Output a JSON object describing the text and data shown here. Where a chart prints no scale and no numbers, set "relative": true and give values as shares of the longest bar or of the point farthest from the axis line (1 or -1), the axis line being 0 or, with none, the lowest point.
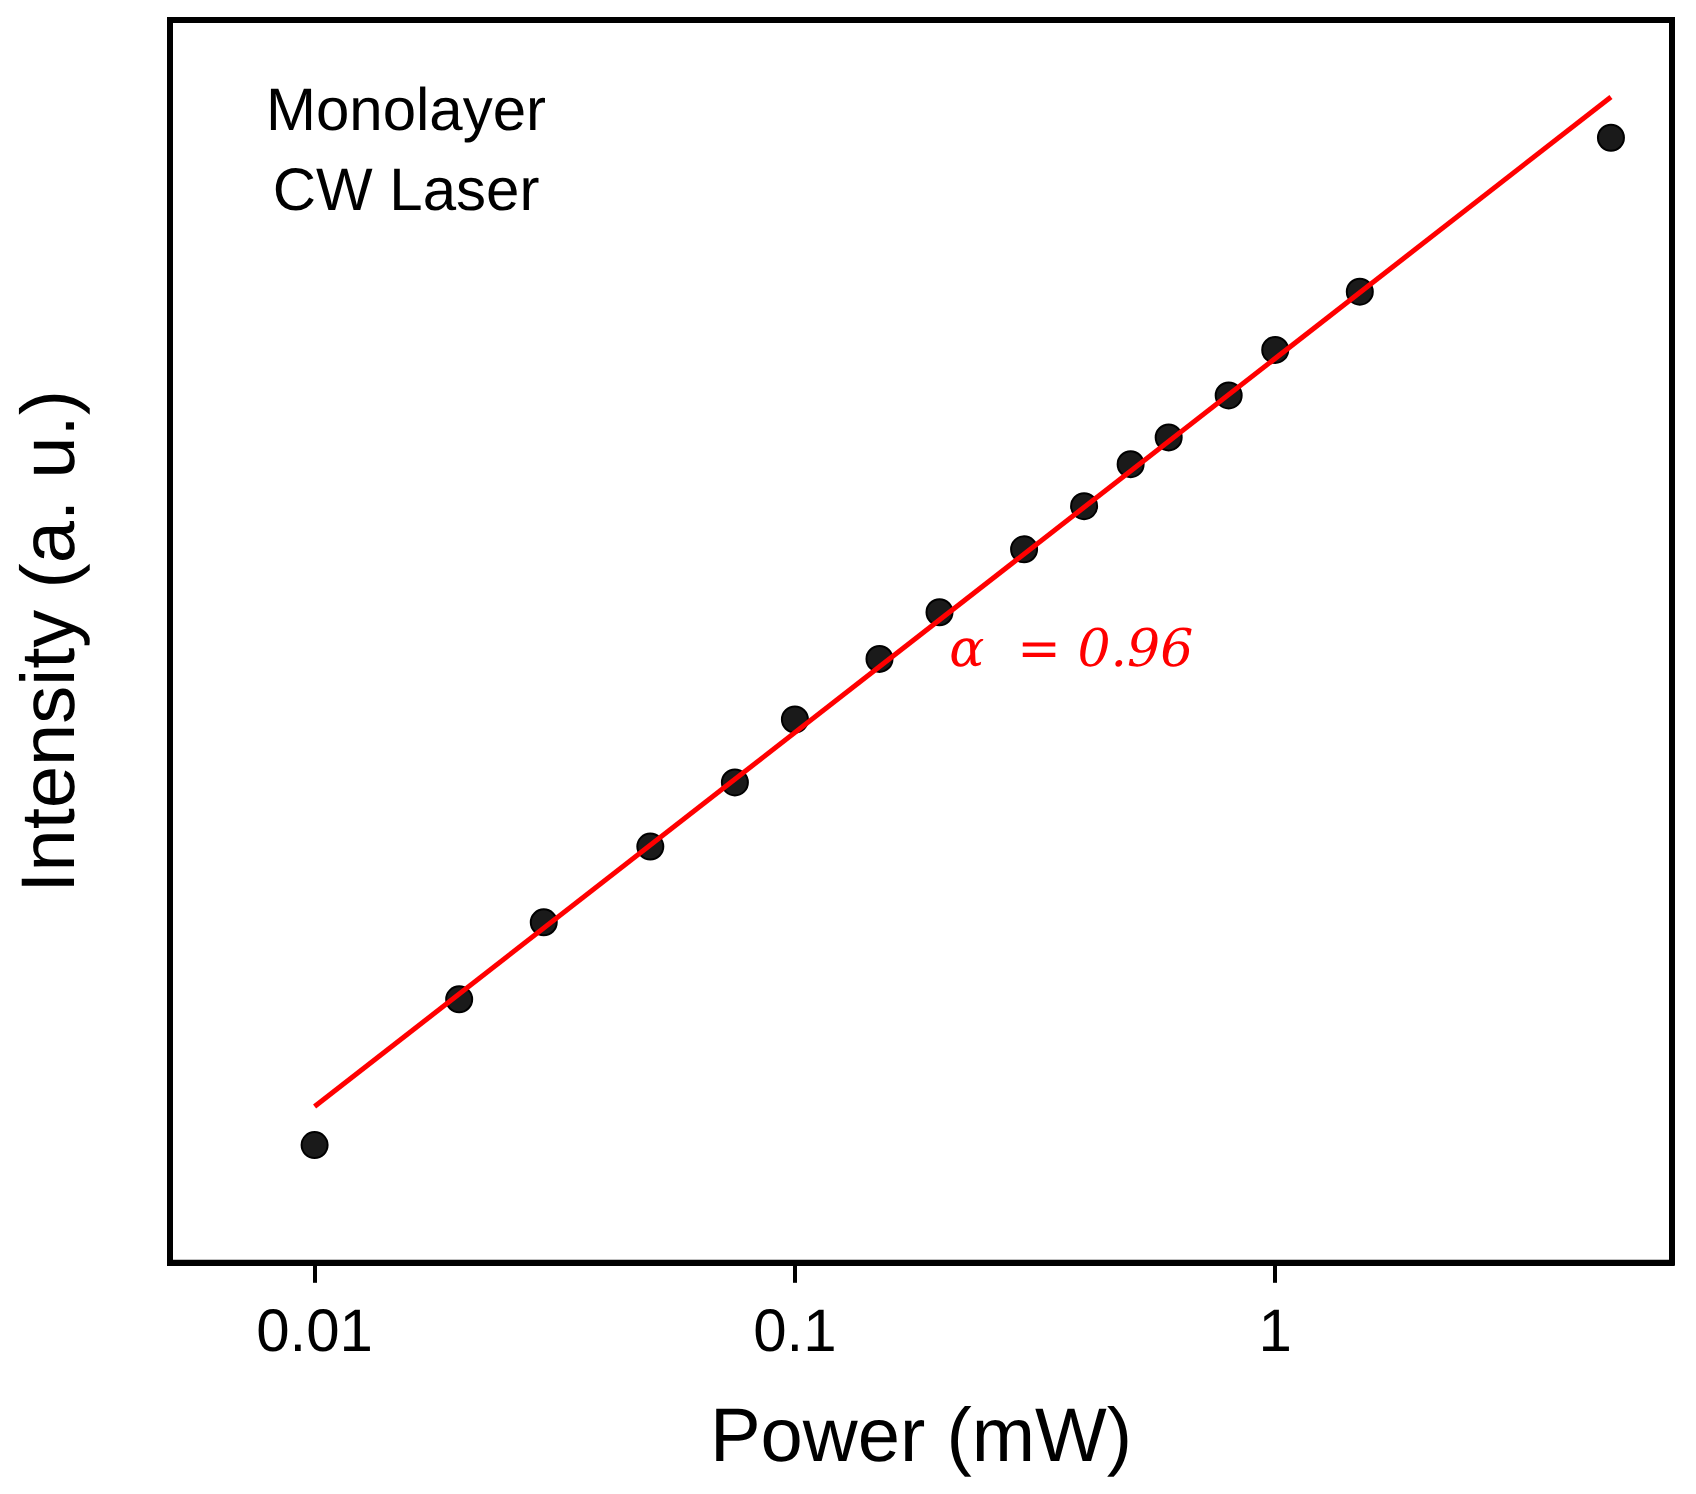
{
  "chart_data": {
    "type": "line",
    "xlabel": "Power (mW)",
    "ylabel": "Intensity (a. u.)",
    "log": "x",
    "relative": true,
    "grid": false,
    "legend": false,
    "tick_labels": "x",
    "marker": "circle",
    "xlim": [
      0.005,
      6.7
    ],
    "xticks": [
      0.01,
      0.1,
      1
    ],
    "series": [
      {
        "type": "scatter",
        "color": "#1a1a1a",
        "x": [
          0.01,
          0.02,
          0.03,
          0.05,
          0.075,
          0.1,
          0.15,
          0.2,
          0.3,
          0.4,
          0.5,
          0.6,
          0.8,
          1,
          1.5,
          5
        ],
        "values": [
          0.101,
          0.226,
          0.292,
          0.357,
          0.412,
          0.466,
          0.518,
          0.558,
          0.612,
          0.649,
          0.685,
          0.708,
          0.744,
          0.783,
          0.833,
          0.965
        ]
      },
      {
        "color": "#ff0000",
        "marker": "none",
        "line_style": "solid",
        "x": [
          0.01,
          5
        ],
        "values": [
          0.134,
          1
        ]
      }
    ],
    "annotations": [
      "Monolayer\nCW Laser",
      "α  = 0.96"
    ]
  }
}
